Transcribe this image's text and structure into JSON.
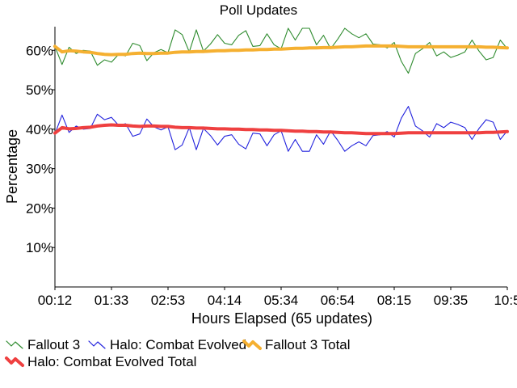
{
  "chart_data": {
    "type": "line",
    "title": "Poll Updates",
    "xlabel": "Hours Elapsed (65 updates)",
    "ylabel": "Percentage",
    "x_tick_labels": [
      "00:12",
      "01:33",
      "02:53",
      "04:14",
      "05:34",
      "06:54",
      "08:15",
      "09:35",
      "10:5"
    ],
    "y_ticks": [
      10,
      20,
      30,
      40,
      50,
      60
    ],
    "y_tick_labels": [
      "10%",
      "20%",
      "30%",
      "40%",
      "50%",
      "60%"
    ],
    "ylim": [
      0,
      66
    ],
    "num_points": 65,
    "grid": false,
    "legend_position": "bottom",
    "series": [
      {
        "name": "Fallout 3",
        "color": "#2e8b2e",
        "style": "thin",
        "values": [
          61,
          56.4,
          60.8,
          59.2,
          60,
          59.8,
          56.2,
          57.6,
          57,
          59,
          58.6,
          61.8,
          61.2,
          57.4,
          59.4,
          60.2,
          59.4,
          65.2,
          64,
          59.6,
          65.2,
          59.8,
          61.6,
          64,
          61.8,
          61.4,
          63.8,
          65,
          61,
          61.2,
          64.2,
          61.4,
          60.4,
          65.6,
          62.6,
          65.6,
          65.6,
          61.4,
          63.8,
          60.4,
          62.8,
          65.6,
          64.2,
          63.2,
          64.2,
          61.6,
          61.4,
          60.6,
          62,
          57.2,
          54.2,
          59.2,
          60.4,
          62,
          58.6,
          59.6,
          58.2,
          58.8,
          59.6,
          62.6,
          59.8,
          57.6,
          58.2,
          62.6,
          60.4
        ]
      },
      {
        "name": "Halo: Combat Evolved",
        "color": "#2222dd",
        "style": "thin",
        "values": [
          38.8,
          43.6,
          39.2,
          40.8,
          40,
          40.2,
          43.8,
          42.4,
          43,
          41,
          41.4,
          38.2,
          38.8,
          42.6,
          40.6,
          39.8,
          40.6,
          34.8,
          36,
          40.4,
          34.8,
          40.2,
          38.4,
          36,
          38.2,
          38.6,
          36.2,
          35,
          39,
          38.8,
          35.8,
          38.6,
          39.6,
          34.4,
          37.4,
          34.4,
          34.4,
          38.6,
          36.2,
          39.6,
          37.2,
          34.4,
          35.8,
          36.8,
          35.8,
          38.4,
          38.6,
          39.4,
          38,
          42.8,
          45.8,
          40.8,
          39.6,
          38,
          41.4,
          40.4,
          41.8,
          41.2,
          40.4,
          37.4,
          40.2,
          42.4,
          41.8,
          37.4,
          39.6
        ]
      },
      {
        "name": "Fallout 3 Total",
        "color": "#f5b031",
        "style": "thick",
        "values": [
          61,
          59.6,
          59.9,
          59.8,
          59.6,
          59.5,
          59.2,
          59.0,
          58.9,
          59.0,
          59.0,
          59.2,
          59.3,
          59.2,
          59.2,
          59.3,
          59.3,
          59.5,
          59.6,
          59.6,
          59.7,
          59.7,
          59.8,
          59.9,
          59.9,
          60.0,
          60.0,
          60.1,
          60.1,
          60.2,
          60.2,
          60.3,
          60.3,
          60.4,
          60.5,
          60.5,
          60.6,
          60.6,
          60.7,
          60.7,
          60.8,
          60.9,
          60.9,
          61.0,
          61.1,
          61.1,
          61.1,
          61.1,
          61.1,
          61.0,
          60.9,
          60.9,
          60.9,
          60.9,
          60.9,
          60.9,
          60.9,
          60.9,
          60.9,
          60.9,
          60.9,
          60.8,
          60.8,
          60.7,
          60.6
        ]
      },
      {
        "name": "Halo: Combat Evolved Total",
        "color": "#ef4040",
        "style": "thick",
        "values": [
          39,
          40.4,
          40.1,
          40.2,
          40.4,
          40.5,
          40.8,
          41.0,
          41.1,
          41.0,
          41.0,
          40.8,
          40.7,
          40.8,
          40.8,
          40.7,
          40.7,
          40.5,
          40.4,
          40.4,
          40.3,
          40.3,
          40.2,
          40.1,
          40.1,
          40.0,
          40.0,
          39.9,
          39.9,
          39.8,
          39.8,
          39.7,
          39.7,
          39.6,
          39.5,
          39.5,
          39.4,
          39.4,
          39.3,
          39.3,
          39.2,
          39.1,
          39.1,
          39.0,
          38.9,
          38.9,
          38.9,
          38.9,
          38.9,
          39.0,
          39.1,
          39.1,
          39.1,
          39.1,
          39.1,
          39.1,
          39.1,
          39.1,
          39.1,
          39.1,
          39.1,
          39.2,
          39.2,
          39.3,
          39.4
        ]
      }
    ]
  }
}
